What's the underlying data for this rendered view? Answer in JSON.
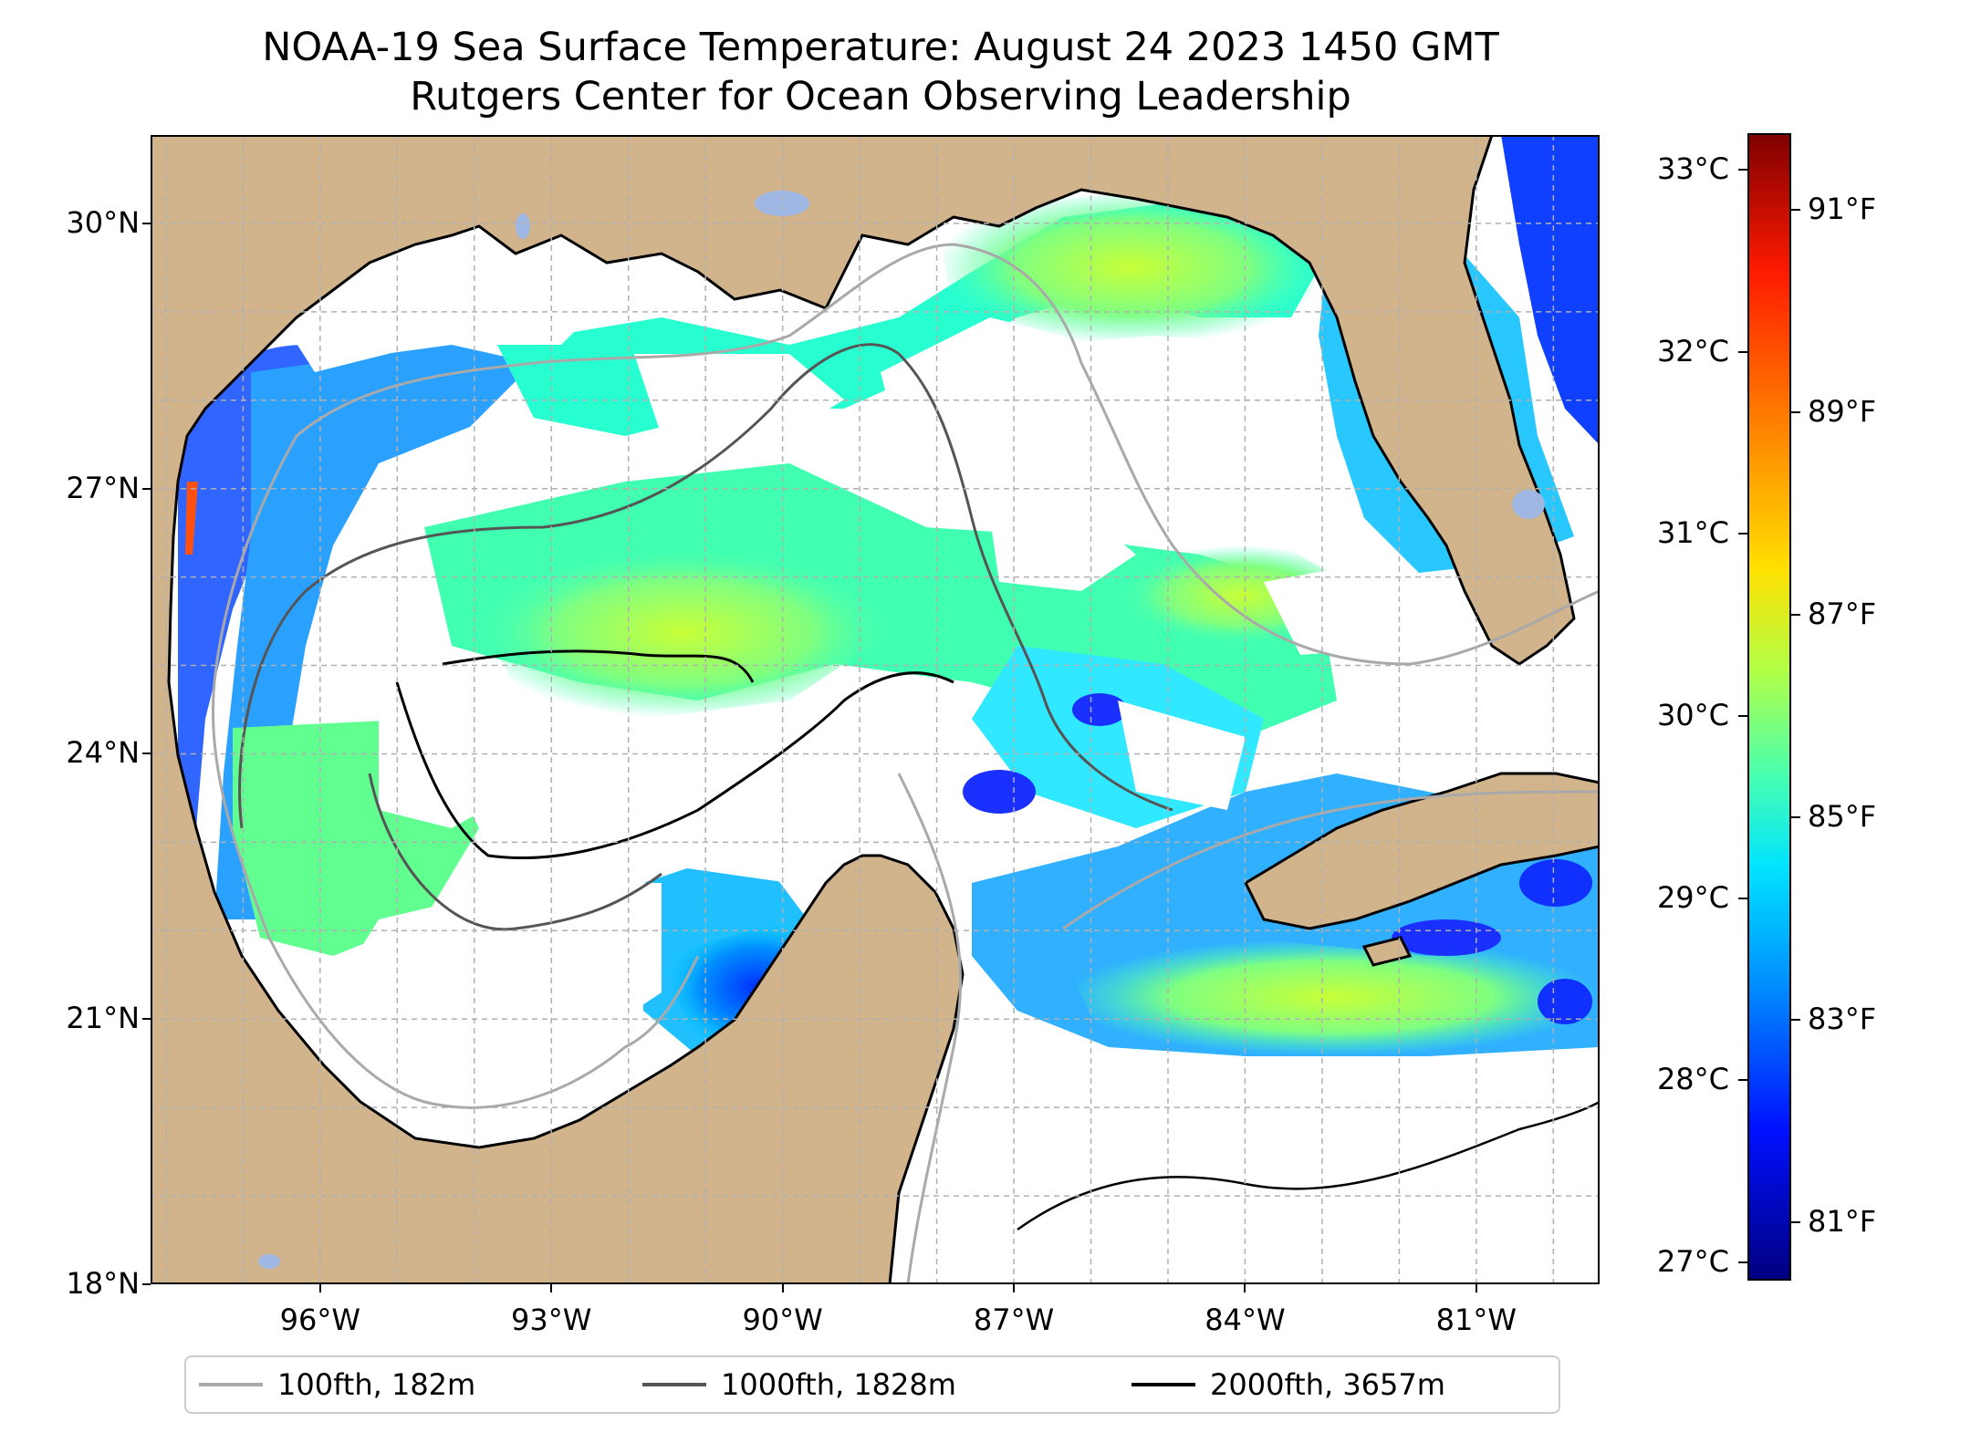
{
  "title": "NOAA-19 Sea Surface Temperature: August 24 2023 1450 GMT",
  "subtitle": "Rutgers Center for Ocean Observing Leadership",
  "map": {
    "region": "Gulf of Mexico",
    "lon_range": [
      -98.2,
      -79.4
    ],
    "lat_range": [
      18.0,
      31.0
    ],
    "lat_ticks": [
      {
        "value": 30,
        "label": "30°N"
      },
      {
        "value": 27,
        "label": "27°N"
      },
      {
        "value": 24,
        "label": "24°N"
      },
      {
        "value": 21,
        "label": "21°N"
      },
      {
        "value": 18,
        "label": "18°N"
      }
    ],
    "lon_ticks": [
      {
        "value": -96,
        "label": "96°W"
      },
      {
        "value": -93,
        "label": "93°W"
      },
      {
        "value": -90,
        "label": "90°W"
      },
      {
        "value": -87,
        "label": "87°W"
      },
      {
        "value": -84,
        "label": "84°W"
      },
      {
        "value": -81,
        "label": "81°W"
      }
    ],
    "gridlines": true,
    "colors": {
      "land": "#d2b48c",
      "no_data": "#ffffff",
      "lakes": "#9fb7e3",
      "contour_100": "#a9a9a9",
      "contour_1000": "#555555",
      "contour_2000": "#000000"
    }
  },
  "colorbar": {
    "colormap": "jet",
    "range_c": [
      26.9,
      33.2
    ],
    "celsius_ticks": [
      {
        "value": 33,
        "label": "33°C"
      },
      {
        "value": 32,
        "label": "32°C"
      },
      {
        "value": 31,
        "label": "31°C"
      },
      {
        "value": 30,
        "label": "30°C"
      },
      {
        "value": 29,
        "label": "29°C"
      },
      {
        "value": 28,
        "label": "28°C"
      },
      {
        "value": 27,
        "label": "27°C"
      }
    ],
    "fahrenheit_ticks": [
      {
        "value": 91,
        "label": "91°F"
      },
      {
        "value": 89,
        "label": "89°F"
      },
      {
        "value": 87,
        "label": "87°F"
      },
      {
        "value": 85,
        "label": "85°F"
      },
      {
        "value": 83,
        "label": "83°F"
      },
      {
        "value": 81,
        "label": "81°F"
      }
    ]
  },
  "legend": {
    "placement": "bottom-center",
    "items": [
      {
        "label": "100fth, 182m",
        "color": "#a9a9a9"
      },
      {
        "label": "1000fth, 1828m",
        "color": "#555555"
      },
      {
        "label": "2000fth, 3657m",
        "color": "#000000"
      }
    ]
  }
}
